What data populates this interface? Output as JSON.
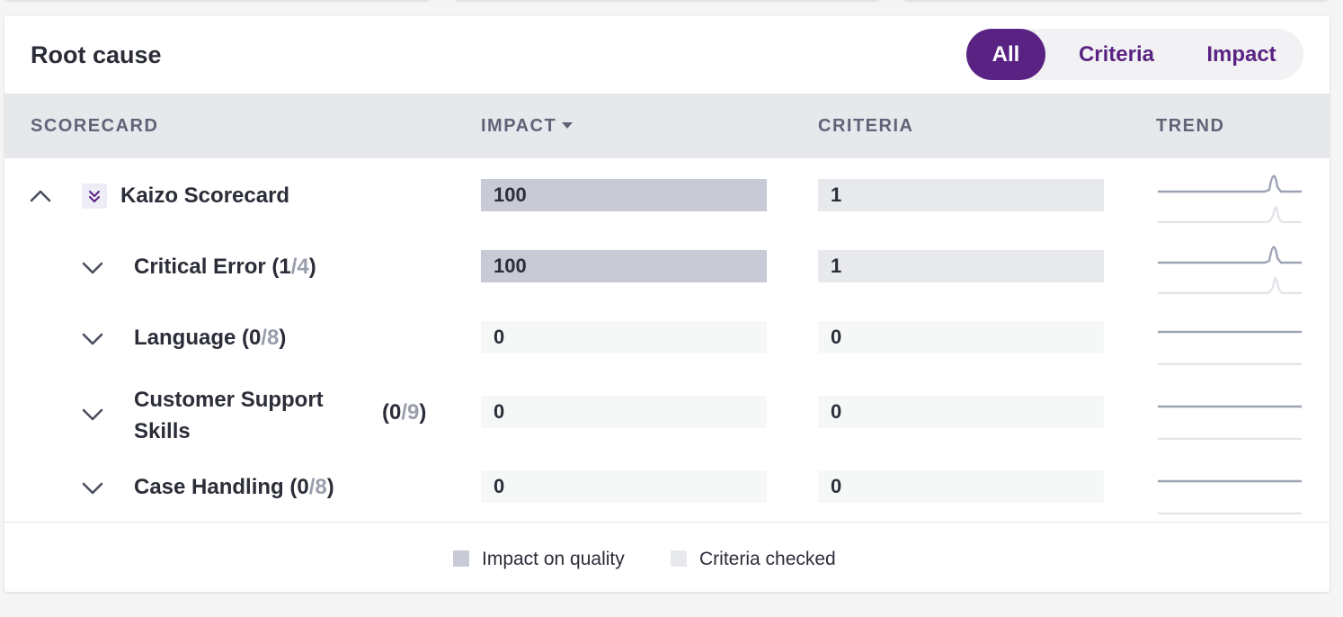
{
  "card": {
    "title": "Root cause"
  },
  "filter": {
    "options": [
      "All",
      "Criteria",
      "Impact"
    ],
    "selected": "All"
  },
  "table": {
    "headers": {
      "scorecard": "SCORECARD",
      "impact": "IMPACT",
      "criteria": "CRITERIA",
      "trend": "TREND"
    },
    "sort": {
      "column": "impact",
      "direction": "desc"
    },
    "rows": [
      {
        "name": "Kaizo Scorecard",
        "impact": "100",
        "criteria": "1",
        "expanded": true,
        "level": 0
      },
      {
        "name": "Critical Error",
        "count_open": "(",
        "checked": "1",
        "sep": "/",
        "total": "4",
        "count_close": ")",
        "impact": "100",
        "criteria": "1",
        "expanded": false,
        "level": 1
      },
      {
        "name": "Language",
        "count_open": "(",
        "checked": "0",
        "sep": "/",
        "total": "8",
        "count_close": ")",
        "impact": "0",
        "criteria": "0",
        "expanded": false,
        "level": 1
      },
      {
        "name": "Customer Support Skills",
        "count_open": "(",
        "checked": "0",
        "sep": "/",
        "total": "9",
        "count_close": ")",
        "impact": "0",
        "criteria": "0",
        "expanded": false,
        "level": 1
      },
      {
        "name": "Case Handling",
        "count_open": "(",
        "checked": "0",
        "sep": "/",
        "total": "8",
        "count_close": ")",
        "impact": "0",
        "criteria": "0",
        "expanded": false,
        "level": 1
      }
    ]
  },
  "legend": {
    "impact": "Impact on quality",
    "criteria": "Criteria checked"
  },
  "colors": {
    "accent": "#5a2383",
    "impact_bar": "#c8cbd6",
    "criteria_bar": "#e8e9ec",
    "trend_line": "#9ea3b5",
    "trend_line_light": "#e3e4e8"
  }
}
